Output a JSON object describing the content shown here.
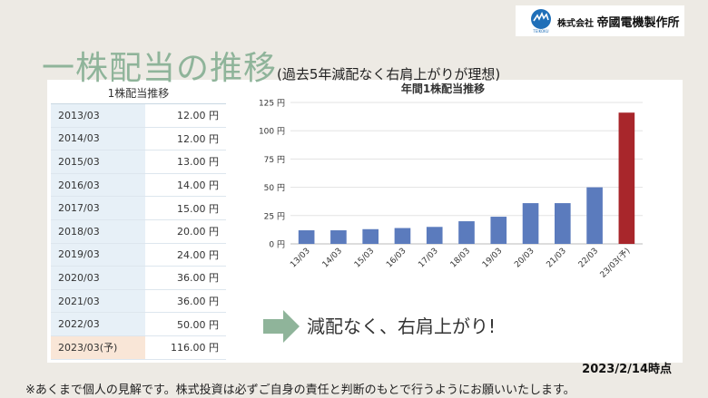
{
  "title": {
    "main": "一株配当の推移",
    "sub": "(過去5年減配なく右肩上がりが理想)"
  },
  "logo": {
    "small": "株式会社",
    "name": "帝國電機製作所",
    "mark": "TEIKOKU"
  },
  "table": {
    "header": "1株配当推移",
    "rows": [
      {
        "year": "2013/03",
        "value": "12.00 円"
      },
      {
        "year": "2014/03",
        "value": "12.00 円"
      },
      {
        "year": "2015/03",
        "value": "13.00 円"
      },
      {
        "year": "2016/03",
        "value": "14.00 円"
      },
      {
        "year": "2017/03",
        "value": "15.00 円"
      },
      {
        "year": "2018/03",
        "value": "20.00 円"
      },
      {
        "year": "2019/03",
        "value": "24.00 円"
      },
      {
        "year": "2020/03",
        "value": "36.00 円"
      },
      {
        "year": "2021/03",
        "value": "36.00 円"
      },
      {
        "year": "2022/03",
        "value": "50.00 円"
      },
      {
        "year": "2023/03(予)",
        "value": "116.00 円"
      }
    ]
  },
  "chart_data": {
    "type": "bar",
    "title": "年間1株配当推移",
    "categories": [
      "13/03",
      "14/03",
      "15/03",
      "16/03",
      "17/03",
      "18/03",
      "19/03",
      "20/03",
      "21/03",
      "22/03",
      "23/03(予)"
    ],
    "values": [
      12,
      12,
      13,
      14,
      15,
      20,
      24,
      36,
      36,
      50,
      116
    ],
    "ylim": [
      0,
      125
    ],
    "yticks": [
      0,
      25,
      50,
      75,
      100,
      125
    ],
    "ytick_labels": [
      "0 円",
      "25 円",
      "50 円",
      "75 円",
      "100 円",
      "125 円"
    ],
    "grid": true,
    "colors": {
      "bar": "#5b7bbd",
      "highlight": "#a8262b"
    }
  },
  "slogan": "減配なく、右肩上がり!",
  "date": "2023/2/14時点",
  "note": "※あくまで個人の見解です。株式投資は必ずご自身の責任と判断のもとで行うようにお願いいたします。",
  "colors": {
    "arrow": "#8fb49a",
    "title": "#8fb49a"
  }
}
